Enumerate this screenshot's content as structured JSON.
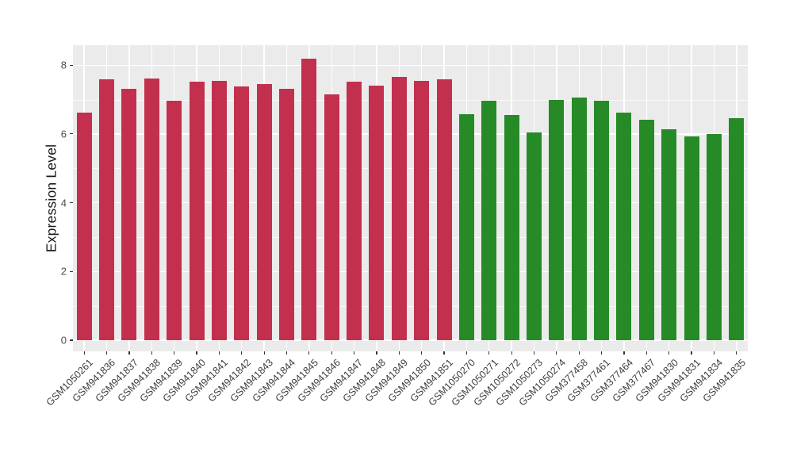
{
  "chart_data": {
    "type": "bar",
    "title": "",
    "xlabel": "",
    "ylabel": "Expression Level",
    "yticks": [
      0,
      2,
      4,
      6,
      8
    ],
    "yticks_minor": [
      1,
      3,
      5,
      7
    ],
    "ylim": [
      0,
      8.61
    ],
    "grid": "white major and minor horizontal lines plus vertical line per category on gray panel",
    "legend_position": "none",
    "colors": {
      "panel_bg": "#EBEBEB",
      "grid": "#FFFFFF",
      "axis_text": "#4D4D4D",
      "tick_mark": "#333333",
      "red_group": "#C2304E",
      "green_group": "#268B26"
    },
    "series": [
      {
        "group": "red",
        "color": "#C2304E",
        "samples": [
          "GSM1050261",
          "GSM941836",
          "GSM941837",
          "GSM941838",
          "GSM941839",
          "GSM941840",
          "GSM941841",
          "GSM941842",
          "GSM941843",
          "GSM941844",
          "GSM941845",
          "GSM941846",
          "GSM941847",
          "GSM941848",
          "GSM941849",
          "GSM941850",
          "GSM941851"
        ],
        "values": [
          6.62,
          7.6,
          7.31,
          7.62,
          6.97,
          7.52,
          7.55,
          7.38,
          7.46,
          7.32,
          8.2,
          7.14,
          7.52,
          7.4,
          7.65,
          7.54,
          7.6
        ]
      },
      {
        "group": "green",
        "color": "#268B26",
        "samples": [
          "GSM1050270",
          "GSM1050271",
          "GSM1050272",
          "GSM1050273",
          "GSM1050274",
          "GSM377458",
          "GSM377461",
          "GSM377464",
          "GSM377467",
          "GSM941830",
          "GSM941831",
          "GSM941834",
          "GSM941835"
        ],
        "values": [
          6.58,
          6.97,
          6.54,
          6.04,
          7.0,
          7.07,
          6.97,
          6.61,
          6.41,
          6.14,
          5.93,
          5.99,
          6.46
        ]
      }
    ]
  }
}
